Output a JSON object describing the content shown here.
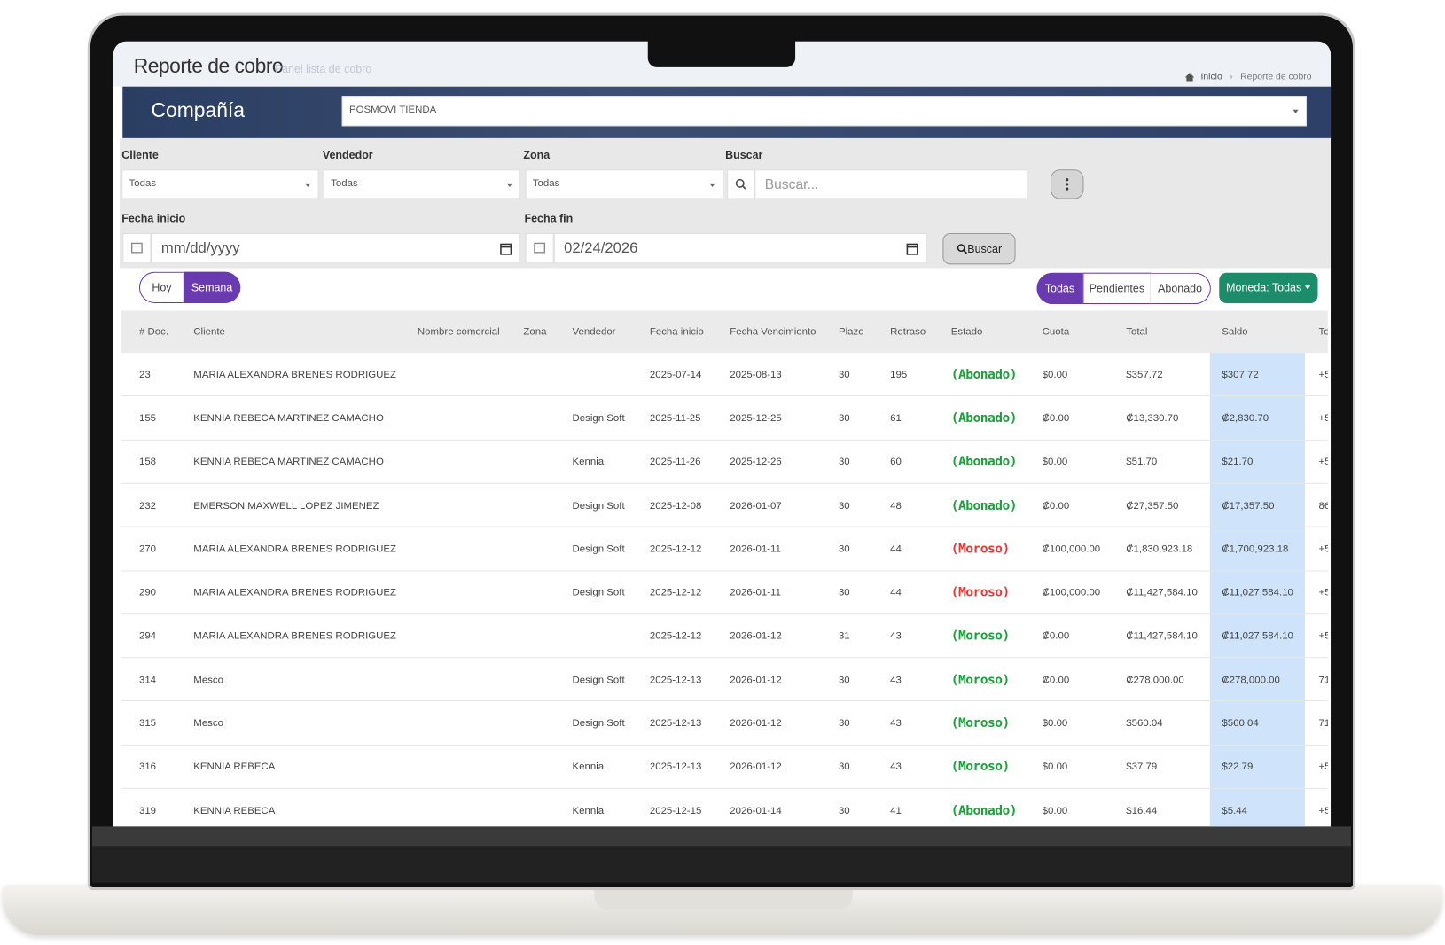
{
  "header": {
    "title": "Reporte de cobro",
    "subtitle": "Panel lista de cobro",
    "breadcrumb": [
      "Inicio",
      "Reporte de cobro"
    ]
  },
  "company": {
    "label": "Compañía",
    "value": "POSMOVI TIENDA"
  },
  "filters": {
    "cliente": {
      "label": "Cliente",
      "value": "Todas"
    },
    "vendedor": {
      "label": "Vendedor",
      "value": "Todas"
    },
    "zona": {
      "label": "Zona",
      "value": "Todas"
    },
    "buscar": {
      "label": "Buscar",
      "placeholder": "Buscar..."
    },
    "fecha_inicio": {
      "label": "Fecha inicio",
      "value": "mm/dd/yyyy"
    },
    "fecha_fin": {
      "label": "Fecha fin",
      "value": "02/24/2026"
    },
    "search_button": "Buscar"
  },
  "period_buttons": [
    "Hoy",
    "Semana"
  ],
  "status_buttons": [
    "Todas",
    "Pendientes",
    "Abonado"
  ],
  "currency_button": "Moneda: Todas",
  "table": {
    "columns": [
      "# Doc.",
      "Cliente",
      "Nombre comercial",
      "Zona",
      "Vendedor",
      "Fecha inicio",
      "Fecha Vencimiento",
      "Plazo",
      "Retraso",
      "Estado",
      "Cuota",
      "Total",
      "Saldo",
      "Te"
    ],
    "rows": [
      {
        "cells": [
          "23",
          "MARIA ALEXANDRA BRENES RODRIGUEZ",
          null,
          null,
          null,
          "2025-07-14",
          "2025-08-13",
          "30",
          "195",
          "(Abonado)",
          "$0.00",
          "$357.72",
          "$307.72",
          "+5"
        ],
        "estado_color": "#1f9e3c"
      },
      {
        "cells": [
          "155",
          "KENNIA REBECA MARTINEZ CAMACHO",
          null,
          null,
          "Design Soft",
          "2025-11-25",
          "2025-12-25",
          "30",
          "61",
          "(Abonado)",
          "₡0.00",
          "₡13,330.70",
          "₡2,830.70",
          "+5"
        ],
        "estado_color": "#1f9e3c"
      },
      {
        "cells": [
          "158",
          "KENNIA REBECA MARTINEZ CAMACHO",
          null,
          null,
          "Kennia",
          "2025-11-26",
          "2025-12-26",
          "30",
          "60",
          "(Abonado)",
          "$0.00",
          "$51.70",
          "$21.70",
          "+5"
        ],
        "estado_color": "#1f9e3c"
      },
      {
        "cells": [
          "232",
          "EMERSON MAXWELL LOPEZ JIMENEZ",
          null,
          null,
          "Design Soft",
          "2025-12-08",
          "2026-01-07",
          "30",
          "48",
          "(Abonado)",
          "₡0.00",
          "₡27,357.50",
          "₡17,357.50",
          "86"
        ],
        "estado_color": "#1f9e3c"
      },
      {
        "cells": [
          "270",
          "MARIA ALEXANDRA BRENES RODRIGUEZ",
          null,
          null,
          "Design Soft",
          "2025-12-12",
          "2026-01-11",
          "30",
          "44",
          "(Moroso)",
          "₡100,000.00",
          "₡1,830,923.18",
          "₡1,700,923.18",
          "+5"
        ],
        "estado_color": "#e03b3b"
      },
      {
        "cells": [
          "290",
          "MARIA ALEXANDRA BRENES RODRIGUEZ",
          null,
          null,
          "Design Soft",
          "2025-12-12",
          "2026-01-11",
          "30",
          "44",
          "(Moroso)",
          "₡100,000.00",
          "₡11,427,584.10",
          "₡11,027,584.10",
          "+5"
        ],
        "estado_color": "#e03b3b"
      },
      {
        "cells": [
          "294",
          "MARIA ALEXANDRA BRENES RODRIGUEZ",
          null,
          null,
          null,
          "2025-12-12",
          "2026-01-12",
          "31",
          "43",
          "(Moroso)",
          "₡0.00",
          "₡11,427,584.10",
          "₡11,027,584.10",
          "+5"
        ],
        "estado_color": "#1f9e3c"
      },
      {
        "cells": [
          "314",
          "Mesco",
          null,
          null,
          "Design Soft",
          "2025-12-13",
          "2026-01-12",
          "30",
          "43",
          "(Moroso)",
          "₡0.00",
          "₡278,000.00",
          "₡278,000.00",
          "71"
        ],
        "estado_color": "#1f9e3c"
      },
      {
        "cells": [
          "315",
          "Mesco",
          null,
          null,
          "Design Soft",
          "2025-12-13",
          "2026-01-12",
          "30",
          "43",
          "(Moroso)",
          "$0.00",
          "$560.04",
          "$560.04",
          "71"
        ],
        "estado_color": "#1f9e3c"
      },
      {
        "cells": [
          "316",
          "KENNIA REBECA",
          null,
          null,
          "Kennia",
          "2025-12-13",
          "2026-01-12",
          "30",
          "43",
          "(Moroso)",
          "$0.00",
          "$37.79",
          "$22.79",
          "+5"
        ],
        "estado_color": "#1f9e3c"
      },
      {
        "cells": [
          "319",
          "KENNIA REBECA",
          null,
          null,
          "Kennia",
          "2025-12-15",
          "2026-01-14",
          "30",
          "41",
          "(Abonado)",
          "$0.00",
          "$16.44",
          "$5.44",
          "+5"
        ],
        "estado_color": "#1f9e3c"
      }
    ]
  }
}
